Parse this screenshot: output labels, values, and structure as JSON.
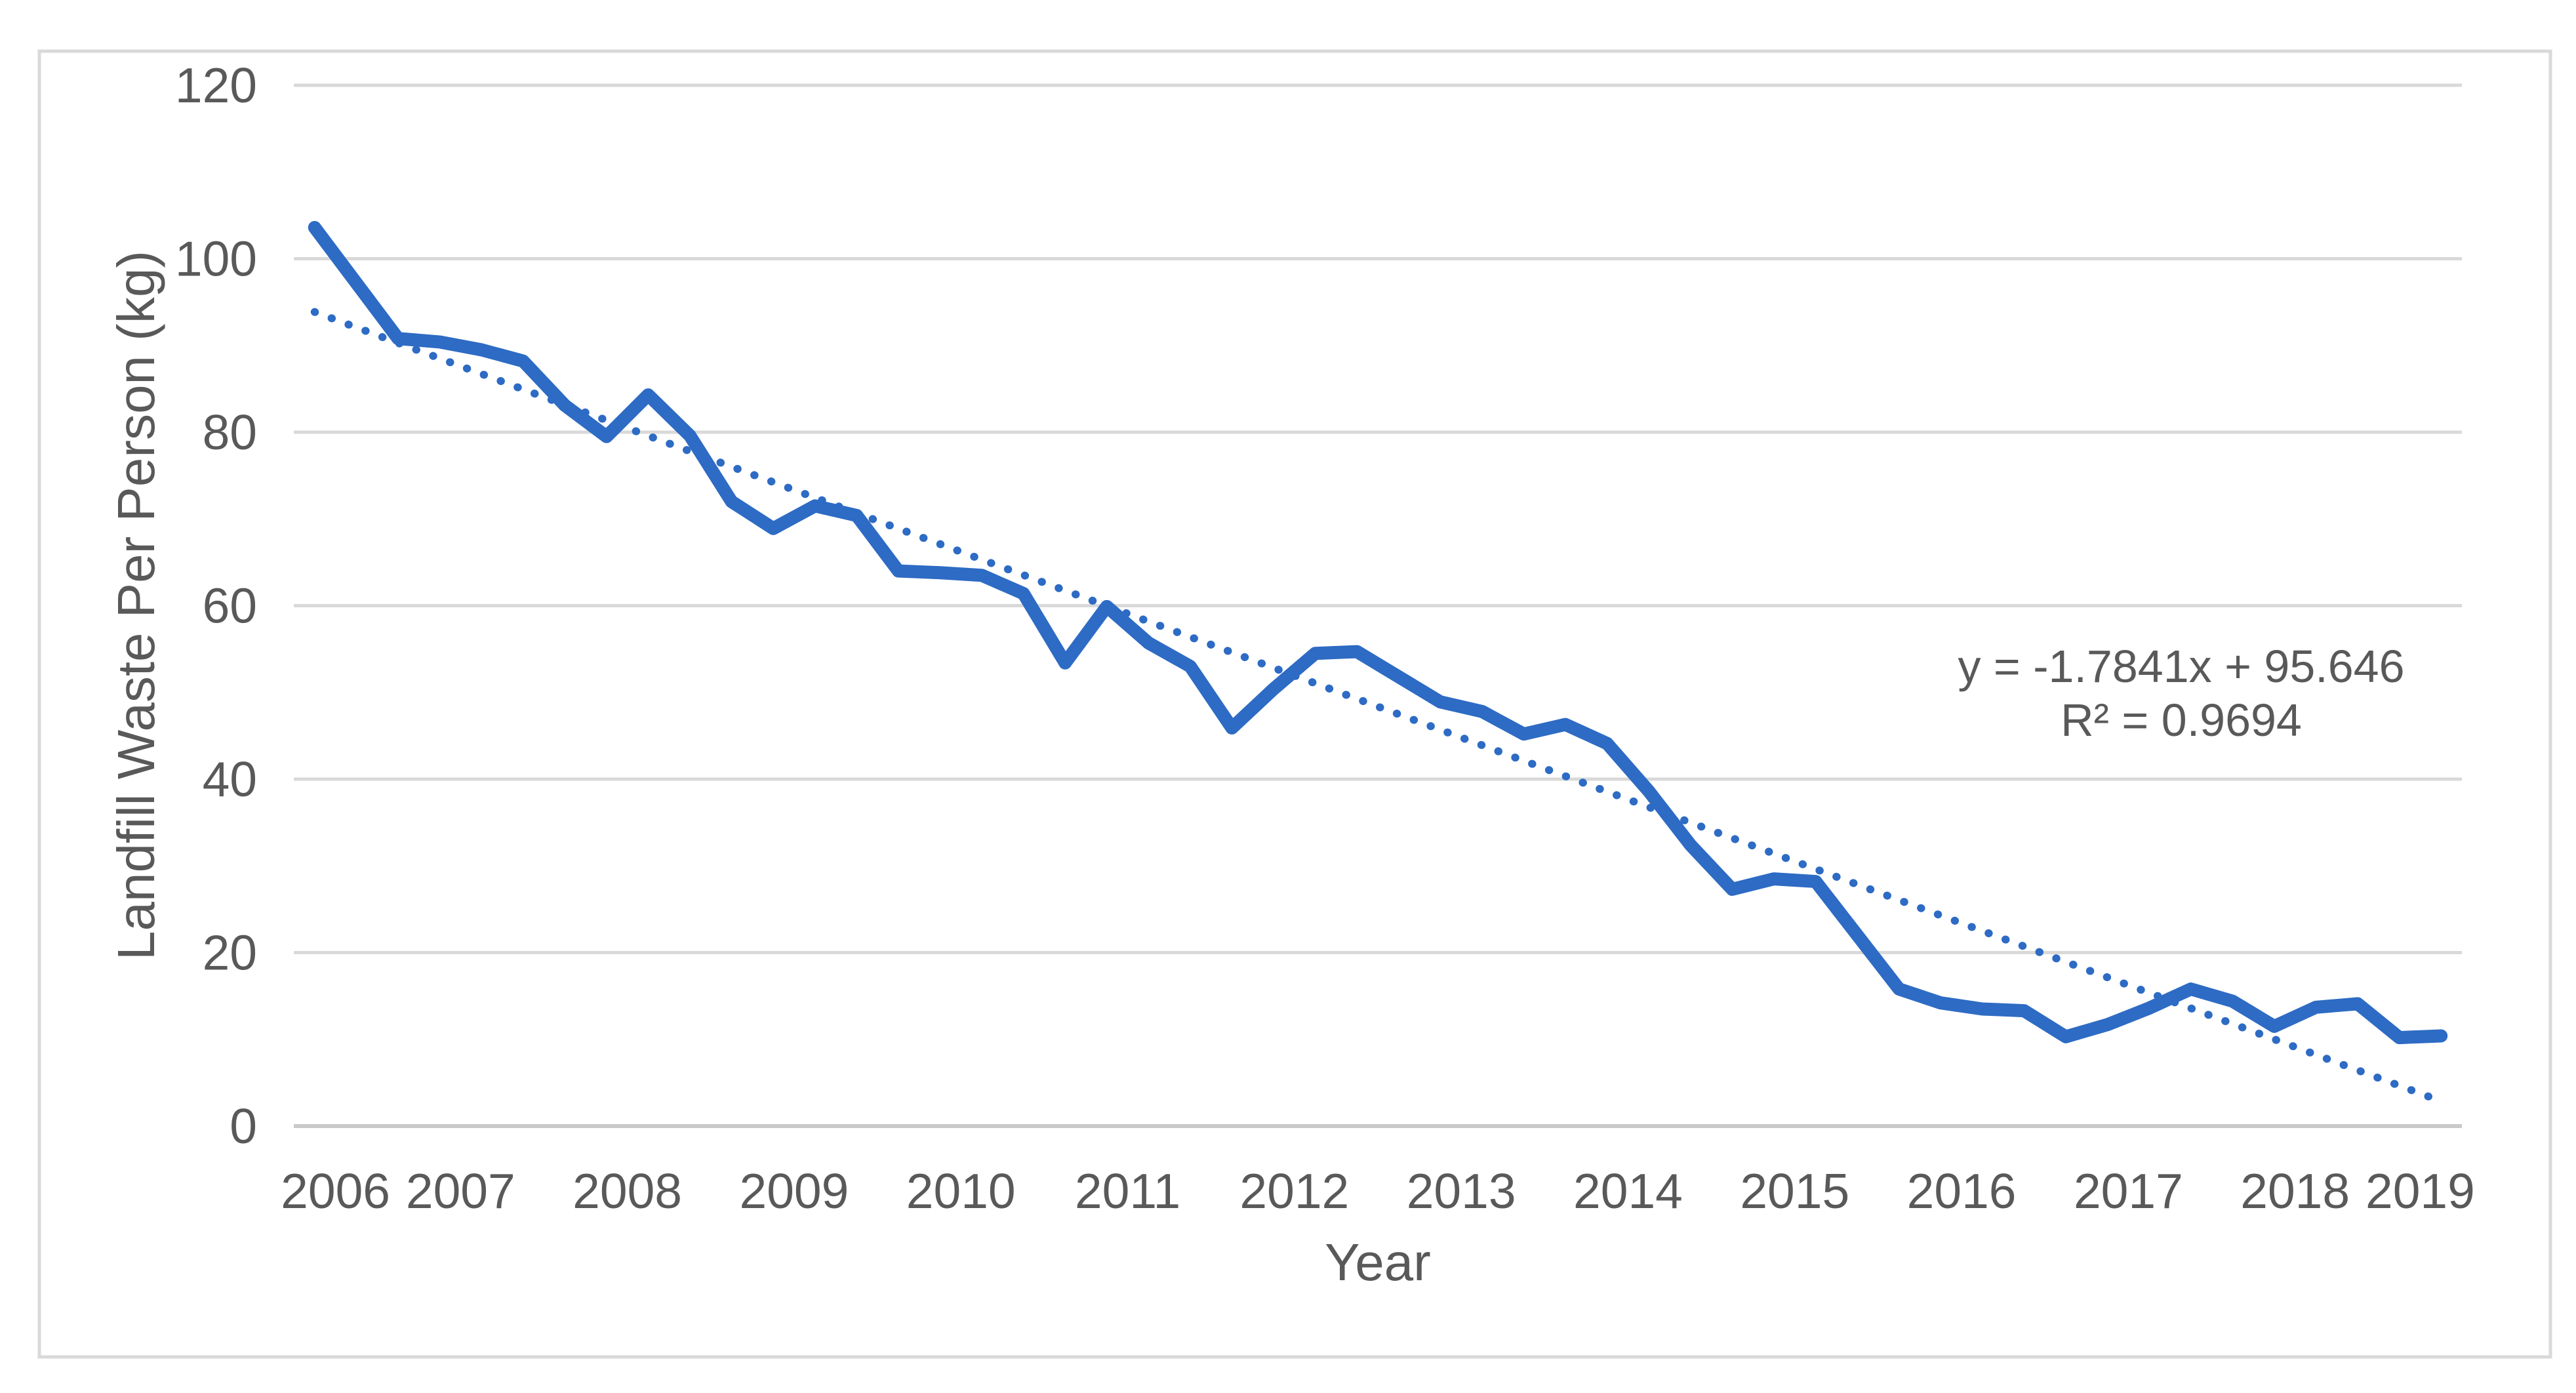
{
  "chart_data": {
    "type": "line",
    "title": "",
    "xlabel": "Year",
    "ylabel": "Landfill Waste Per Person (kg)",
    "ylim": [
      0,
      120
    ],
    "yticks": [
      0,
      20,
      40,
      60,
      80,
      100,
      120
    ],
    "year_labels": [
      "2006",
      "2007",
      "2008",
      "2009",
      "2010",
      "2011",
      "2012",
      "2013",
      "2014",
      "2015",
      "2016",
      "2017",
      "2018",
      "2019"
    ],
    "grid": "horizontal",
    "legend": "none",
    "colors": {
      "series_blue": "#2D6BC4",
      "grid_gray": "#D9D9D9",
      "text_gray": "#595959",
      "border_gray": "#D9D9D9"
    },
    "series": [
      {
        "name": "Landfill Waste Per Person (kg)",
        "color": "#2D6BC4",
        "points": [
          {
            "year": 2006,
            "quarter": "Q3",
            "value": 103.6
          },
          {
            "year": 2006,
            "quarter": "Q4",
            "value": 97.2
          },
          {
            "year": 2007,
            "quarter": "Q1",
            "value": 90.8
          },
          {
            "year": 2007,
            "quarter": "Q2",
            "value": 90.4
          },
          {
            "year": 2007,
            "quarter": "Q3",
            "value": 89.5
          },
          {
            "year": 2007,
            "quarter": "Q4",
            "value": 88.2
          },
          {
            "year": 2008,
            "quarter": "Q1",
            "value": 83.1
          },
          {
            "year": 2008,
            "quarter": "Q2",
            "value": 79.5
          },
          {
            "year": 2008,
            "quarter": "Q3",
            "value": 84.3
          },
          {
            "year": 2008,
            "quarter": "Q4",
            "value": 79.6
          },
          {
            "year": 2009,
            "quarter": "Q1",
            "value": 72.0
          },
          {
            "year": 2009,
            "quarter": "Q2",
            "value": 68.9
          },
          {
            "year": 2009,
            "quarter": "Q3",
            "value": 71.5
          },
          {
            "year": 2009,
            "quarter": "Q4",
            "value": 70.4
          },
          {
            "year": 2010,
            "quarter": "Q1",
            "value": 64.0
          },
          {
            "year": 2010,
            "quarter": "Q2",
            "value": 63.8
          },
          {
            "year": 2010,
            "quarter": "Q3",
            "value": 63.5
          },
          {
            "year": 2010,
            "quarter": "Q4",
            "value": 61.4
          },
          {
            "year": 2011,
            "quarter": "Q1",
            "value": 53.4
          },
          {
            "year": 2011,
            "quarter": "Q2",
            "value": 59.9
          },
          {
            "year": 2011,
            "quarter": "Q3",
            "value": 55.7
          },
          {
            "year": 2011,
            "quarter": "Q4",
            "value": 53.0
          },
          {
            "year": 2012,
            "quarter": "Q1",
            "value": 45.9
          },
          {
            "year": 2012,
            "quarter": "Q2",
            "value": 50.4
          },
          {
            "year": 2012,
            "quarter": "Q3",
            "value": 54.5
          },
          {
            "year": 2012,
            "quarter": "Q4",
            "value": 54.7
          },
          {
            "year": 2013,
            "quarter": "Q1",
            "value": 51.8
          },
          {
            "year": 2013,
            "quarter": "Q2",
            "value": 48.9
          },
          {
            "year": 2013,
            "quarter": "Q3",
            "value": 47.8
          },
          {
            "year": 2013,
            "quarter": "Q4",
            "value": 45.2
          },
          {
            "year": 2014,
            "quarter": "Q1",
            "value": 46.3
          },
          {
            "year": 2014,
            "quarter": "Q2",
            "value": 44.1
          },
          {
            "year": 2014,
            "quarter": "Q3",
            "value": 38.6
          },
          {
            "year": 2014,
            "quarter": "Q4",
            "value": 32.4
          },
          {
            "year": 2015,
            "quarter": "Q1",
            "value": 27.3
          },
          {
            "year": 2015,
            "quarter": "Q2",
            "value": 28.5
          },
          {
            "year": 2015,
            "quarter": "Q3",
            "value": 28.2
          },
          {
            "year": 2015,
            "quarter": "Q4",
            "value": 22.0
          },
          {
            "year": 2016,
            "quarter": "Q1",
            "value": 15.8
          },
          {
            "year": 2016,
            "quarter": "Q2",
            "value": 14.2
          },
          {
            "year": 2016,
            "quarter": "Q3",
            "value": 13.5
          },
          {
            "year": 2016,
            "quarter": "Q4",
            "value": 13.3
          },
          {
            "year": 2017,
            "quarter": "Q1",
            "value": 10.3
          },
          {
            "year": 2017,
            "quarter": "Q2",
            "value": 11.7
          },
          {
            "year": 2017,
            "quarter": "Q3",
            "value": 13.6
          },
          {
            "year": 2017,
            "quarter": "Q4",
            "value": 15.8
          },
          {
            "year": 2018,
            "quarter": "Q1",
            "value": 14.4
          },
          {
            "year": 2018,
            "quarter": "Q2",
            "value": 11.5
          },
          {
            "year": 2018,
            "quarter": "Q3",
            "value": 13.7
          },
          {
            "year": 2018,
            "quarter": "Q4",
            "value": 14.1
          },
          {
            "year": 2019,
            "quarter": "Q1",
            "value": 10.2
          },
          {
            "year": 2019,
            "quarter": "Q2",
            "value": 10.4
          }
        ]
      }
    ],
    "trendline": {
      "label_line1": "y = -1.7841x + 95.646",
      "label_line2": "R² = 0.9694",
      "slope": -1.7841,
      "intercept": 95.646,
      "r_squared": 0.9694,
      "style": "dotted",
      "color": "#2D6BC4"
    }
  }
}
